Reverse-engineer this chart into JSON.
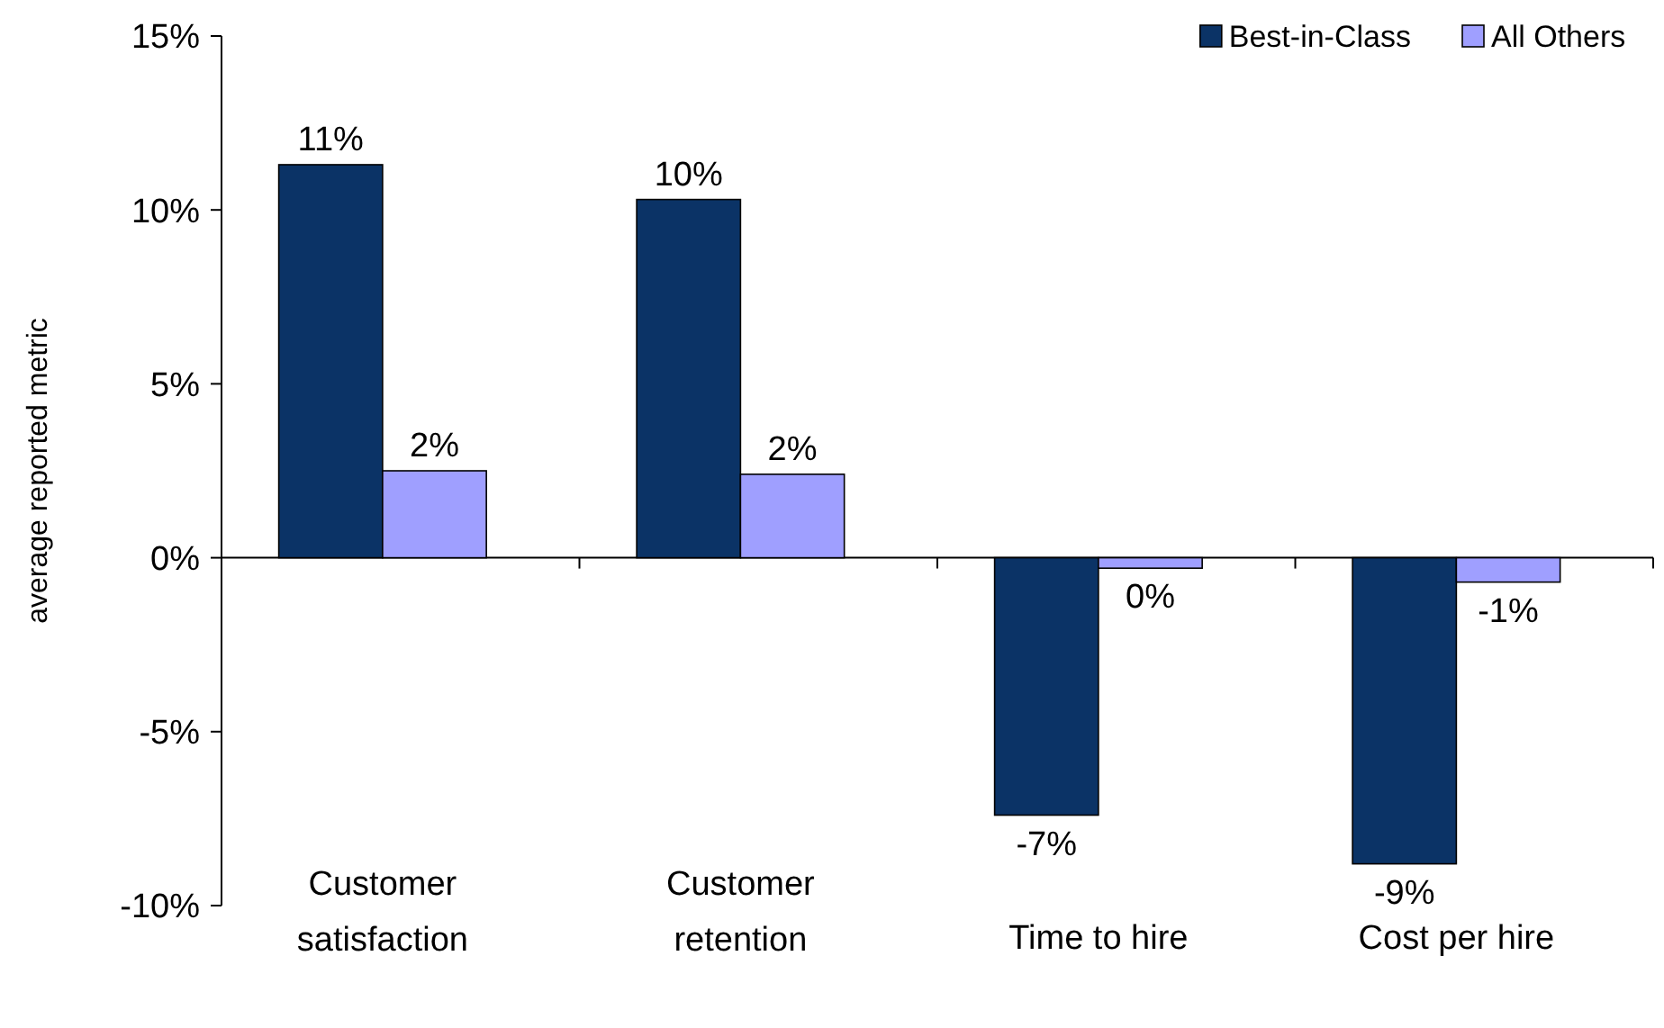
{
  "chart_data": {
    "type": "bar",
    "ylabel": "average reported metric",
    "categories": [
      "Customer satisfaction",
      "Customer retention",
      "Time to hire",
      "Cost per hire"
    ],
    "series": [
      {
        "name": "Best-in-Class",
        "color": "#0b3366",
        "values": [
          11.3,
          10.3,
          -7.4,
          -8.8
        ],
        "value_labels": [
          "11%",
          "10%",
          "-7%",
          "-9%"
        ]
      },
      {
        "name": "All Others",
        "color": "#9f9fff",
        "values": [
          2.5,
          2.4,
          -0.3,
          -0.7
        ],
        "value_labels": [
          "2%",
          "2%",
          "0%",
          "-1%"
        ]
      }
    ],
    "ylim": [
      -10,
      15
    ],
    "yticks": [
      {
        "value": -10,
        "label": "-10%"
      },
      {
        "value": -5,
        "label": "-5%"
      },
      {
        "value": 0,
        "label": "0%"
      },
      {
        "value": 5,
        "label": "5%"
      },
      {
        "value": 10,
        "label": "10%"
      },
      {
        "value": 15,
        "label": "15%"
      }
    ],
    "legend": "top right"
  }
}
